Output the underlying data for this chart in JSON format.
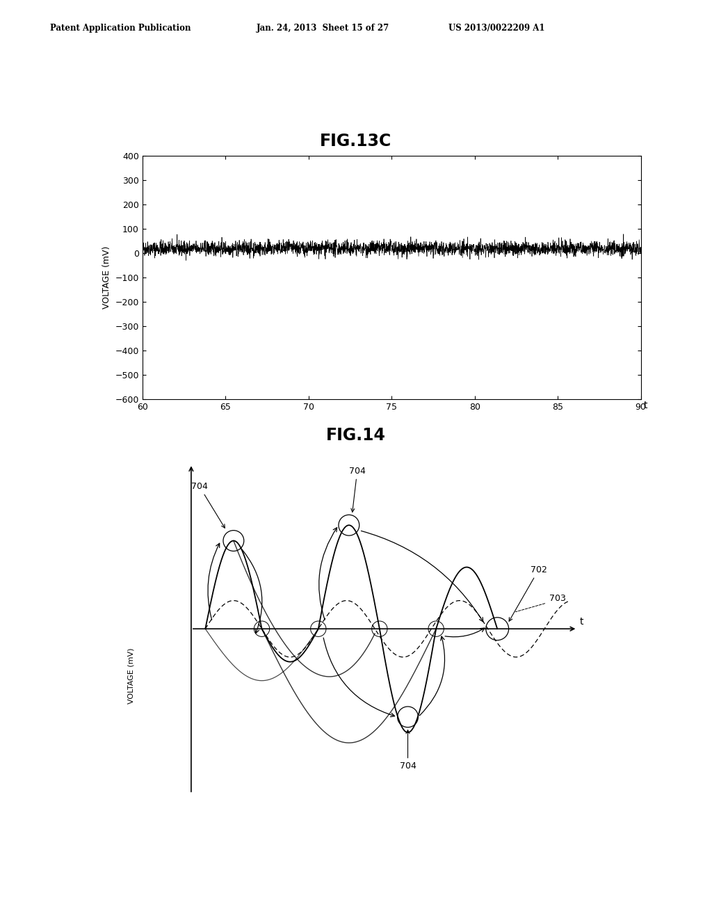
{
  "fig_title_top": "FIG.13C",
  "fig_title_bottom": "FIG.14",
  "header_left": "Patent Application Publication",
  "header_mid": "Jan. 24, 2013  Sheet 15 of 27",
  "header_right": "US 2013/0022209 A1",
  "plot1": {
    "ylabel": "VOLTAGE (mV)",
    "xlabel": "t",
    "xlim": [
      60,
      90
    ],
    "ylim": [
      -600,
      400
    ],
    "yticks": [
      400,
      300,
      200,
      100,
      0,
      -100,
      -200,
      -300,
      -400,
      -500,
      -600
    ],
    "xticks": [
      60,
      65,
      70,
      75,
      80,
      85,
      90
    ],
    "noise_mean": 20,
    "noise_std": 15,
    "noise_color": "#000000",
    "noise_linewidth": 0.5
  },
  "plot2": {
    "ylabel": "VOLTAGE (mV)",
    "xlabel": "t",
    "label_702": "702",
    "label_703": "703",
    "label_704": "704"
  },
  "background_color": "#ffffff",
  "text_color": "#000000"
}
